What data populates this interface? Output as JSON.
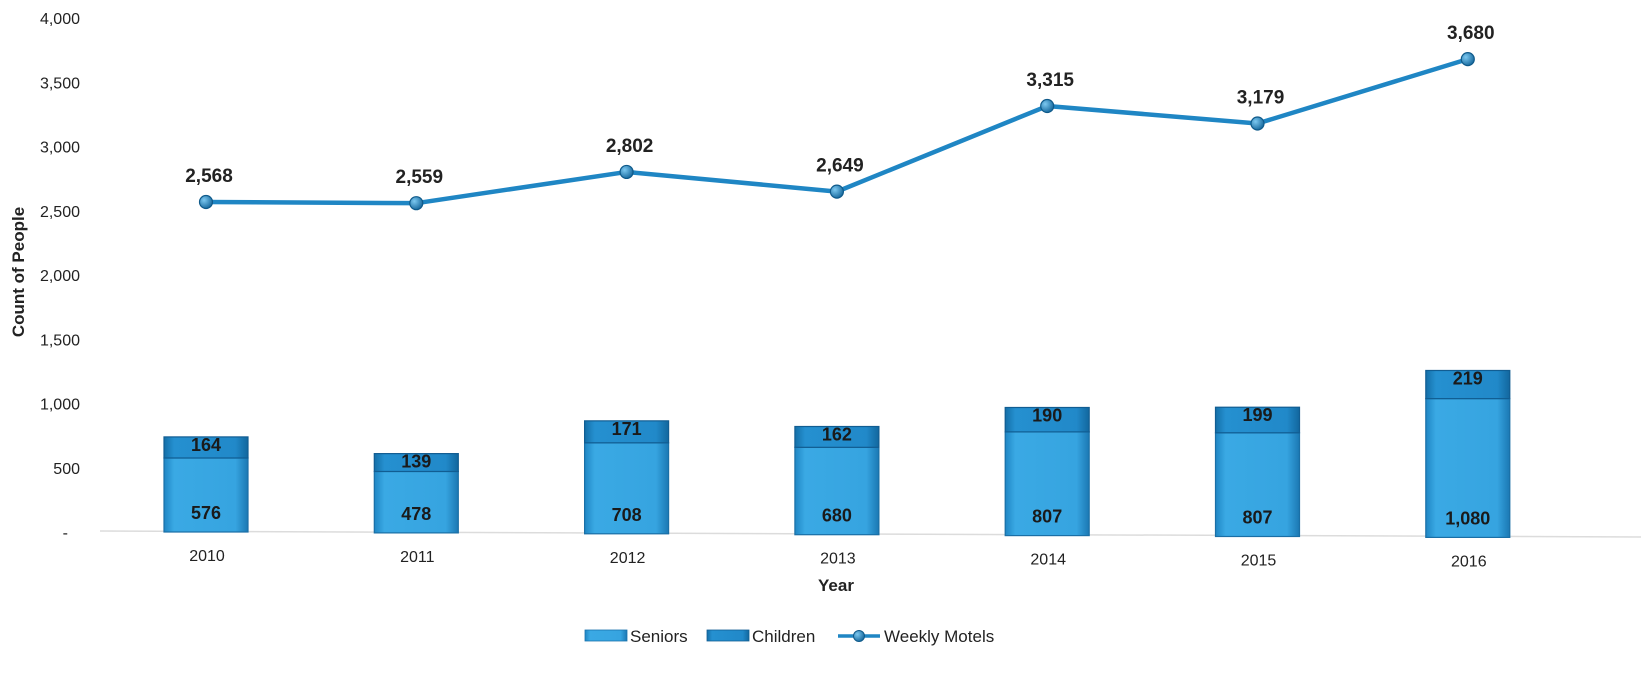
{
  "chart_data": {
    "type": "bar",
    "categories": [
      "2010",
      "2011",
      "2012",
      "2013",
      "2014",
      "2015",
      "2016"
    ],
    "series": [
      {
        "name": "Seniors",
        "kind": "bar-stacked",
        "values": [
          576,
          478,
          708,
          680,
          807,
          807,
          1080
        ],
        "labels": [
          "576",
          "478",
          "708",
          "680",
          "807",
          "807",
          "1,080"
        ]
      },
      {
        "name": "Children",
        "kind": "bar-stacked",
        "values": [
          164,
          139,
          171,
          162,
          190,
          199,
          219
        ],
        "labels": [
          "164",
          "139",
          "171",
          "162",
          "190",
          "199",
          "219"
        ]
      },
      {
        "name": "Weekly Motels",
        "kind": "line",
        "values": [
          2568,
          2559,
          2802,
          2649,
          3315,
          3179,
          3680
        ],
        "labels": [
          "2,568",
          "2,559",
          "2,802",
          "2,649",
          "3,315",
          "3,179",
          "3,680"
        ]
      }
    ],
    "xlabel": "Year",
    "ylabel": "Count of People",
    "ylim": [
      0,
      4000
    ],
    "yticks": [
      0,
      500,
      1000,
      1500,
      2000,
      2500,
      3000,
      3500,
      4000
    ],
    "ytick_labels": [
      "-",
      "500",
      "1,000",
      "1,500",
      "2,000",
      "2,500",
      "3,000",
      "3,500",
      "4,000"
    ],
    "legend": [
      "Seniors",
      "Children",
      "Weekly Motels"
    ],
    "legend_position": "bottom",
    "grid": false,
    "colors": {
      "seniors": "#2b9ad6",
      "children": "#1b84c2",
      "line": "#1f86c4",
      "marker": "#1a7fbf"
    }
  }
}
